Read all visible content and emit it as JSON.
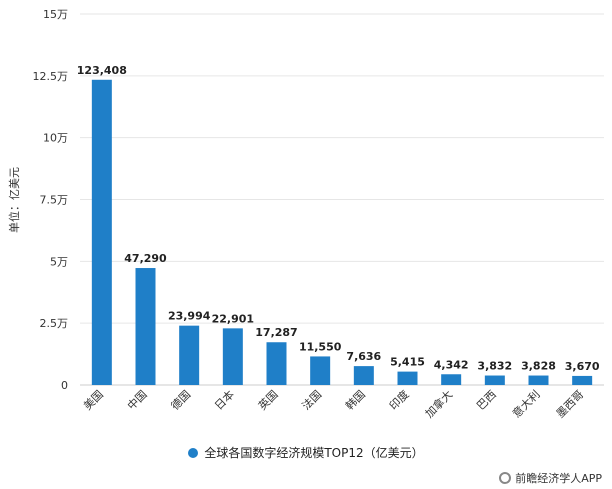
{
  "chart_data": {
    "type": "bar",
    "categories": [
      "美国",
      "中国",
      "德国",
      "日本",
      "英国",
      "法国",
      "韩国",
      "印度",
      "加拿大",
      "巴西",
      "意大利",
      "墨西哥"
    ],
    "values": [
      123408,
      47290,
      23994,
      22901,
      17287,
      11550,
      7636,
      5415,
      4342,
      3832,
      3828,
      3670
    ],
    "data_labels": [
      "123,408",
      "47,290",
      "23,994",
      "22,901",
      "17,287",
      "11,550",
      "7,636",
      "5,415",
      "4,342",
      "3,832",
      "3,828",
      "3,670"
    ],
    "yticks": [
      0,
      25000,
      50000,
      75000,
      100000,
      125000,
      150000
    ],
    "ytick_labels": [
      "0",
      "2.5万",
      "5万",
      "7.5万",
      "10万",
      "12.5万",
      "15万"
    ],
    "ylim": [
      0,
      150000
    ],
    "ylabel": "单位：亿美元",
    "legend": "全球各国数字经济规模TOP12（亿美元）",
    "legend_position": "bottom-center",
    "grid": "horizontal",
    "color": "#1f7fc8"
  },
  "source": "前瞻经济学人APP"
}
